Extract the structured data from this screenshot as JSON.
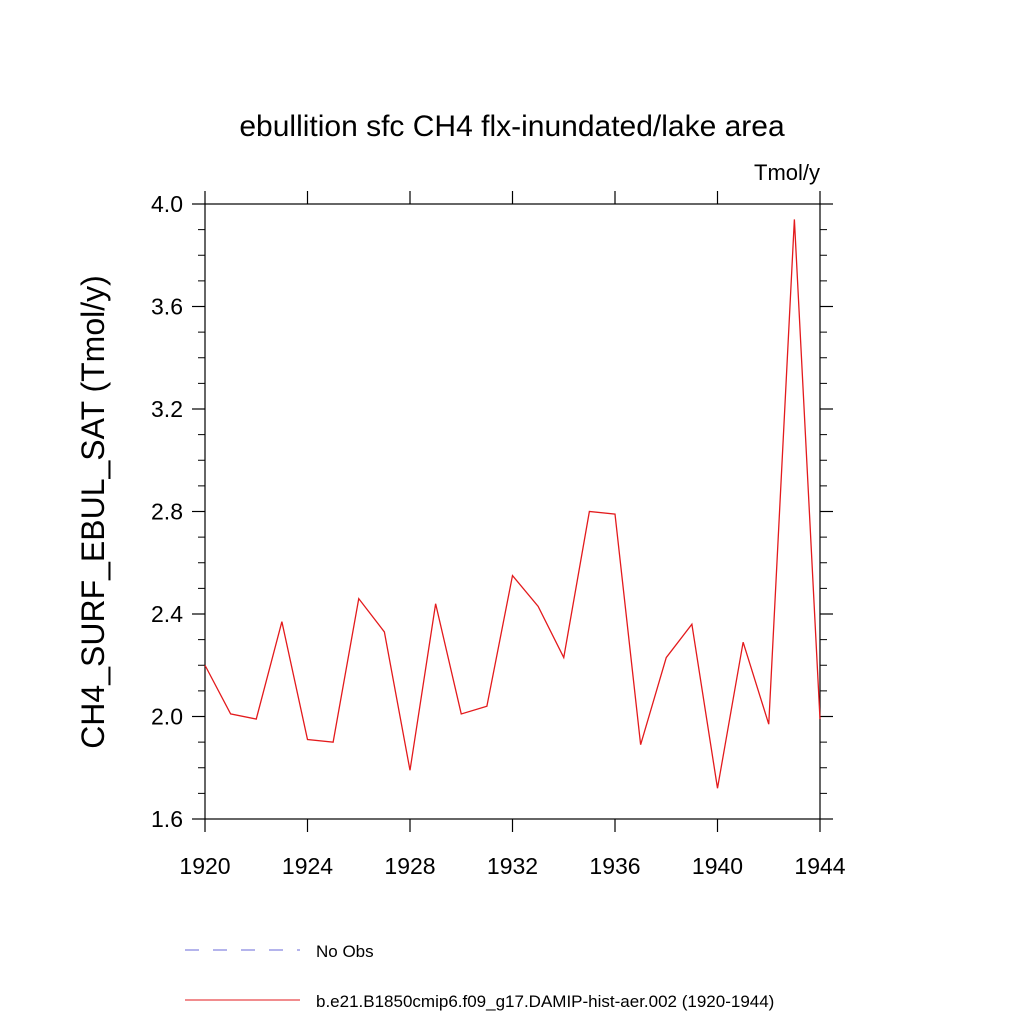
{
  "chart_data": {
    "type": "line",
    "title": "ebullition sfc CH4 flx-inundated/lake area",
    "units_label": "Tmol/y",
    "ylabel": "CH4_SURF_EBUL_SAT  (Tmol/y)",
    "xlabel": "",
    "xlim": [
      1920,
      1944
    ],
    "ylim": [
      1.6,
      4.0
    ],
    "x_ticks": [
      1920,
      1924,
      1928,
      1932,
      1936,
      1940,
      1944
    ],
    "x_tick_labels": [
      "1920",
      "1924",
      "1928",
      "1932",
      "1936",
      "1940",
      "1944"
    ],
    "y_ticks": [
      1.6,
      2.0,
      2.4,
      2.8,
      3.2,
      3.6,
      4.0
    ],
    "y_tick_labels": [
      "1.6",
      "2.0",
      "2.4",
      "2.8",
      "3.2",
      "3.6",
      "4.0"
    ],
    "grid": false,
    "legend_position": "bottom",
    "x": [
      1920,
      1921,
      1922,
      1923,
      1924,
      1925,
      1926,
      1927,
      1928,
      1929,
      1930,
      1931,
      1932,
      1933,
      1934,
      1935,
      1936,
      1937,
      1938,
      1939,
      1940,
      1941,
      1942,
      1943,
      1944
    ],
    "series": [
      {
        "name": "b.e21.B1850cmip6.f09_g17.DAMIP-hist-aer.002 (1920-1944)",
        "color": "#e31a1c",
        "style": "solid",
        "values": [
          2.2,
          2.01,
          1.99,
          2.37,
          1.91,
          1.9,
          2.46,
          2.33,
          1.79,
          2.44,
          2.01,
          2.04,
          2.55,
          2.43,
          2.23,
          2.8,
          2.79,
          1.89,
          2.23,
          2.36,
          1.72,
          2.29,
          1.97,
          3.94,
          1.99
        ]
      }
    ],
    "legend": [
      {
        "label": "No Obs",
        "color": "#6a6ad8",
        "style": "dashed"
      },
      {
        "label": "b.e21.B1850cmip6.f09_g17.DAMIP-hist-aer.002 (1920-1944)",
        "color": "#e31a1c",
        "style": "solid"
      }
    ]
  }
}
